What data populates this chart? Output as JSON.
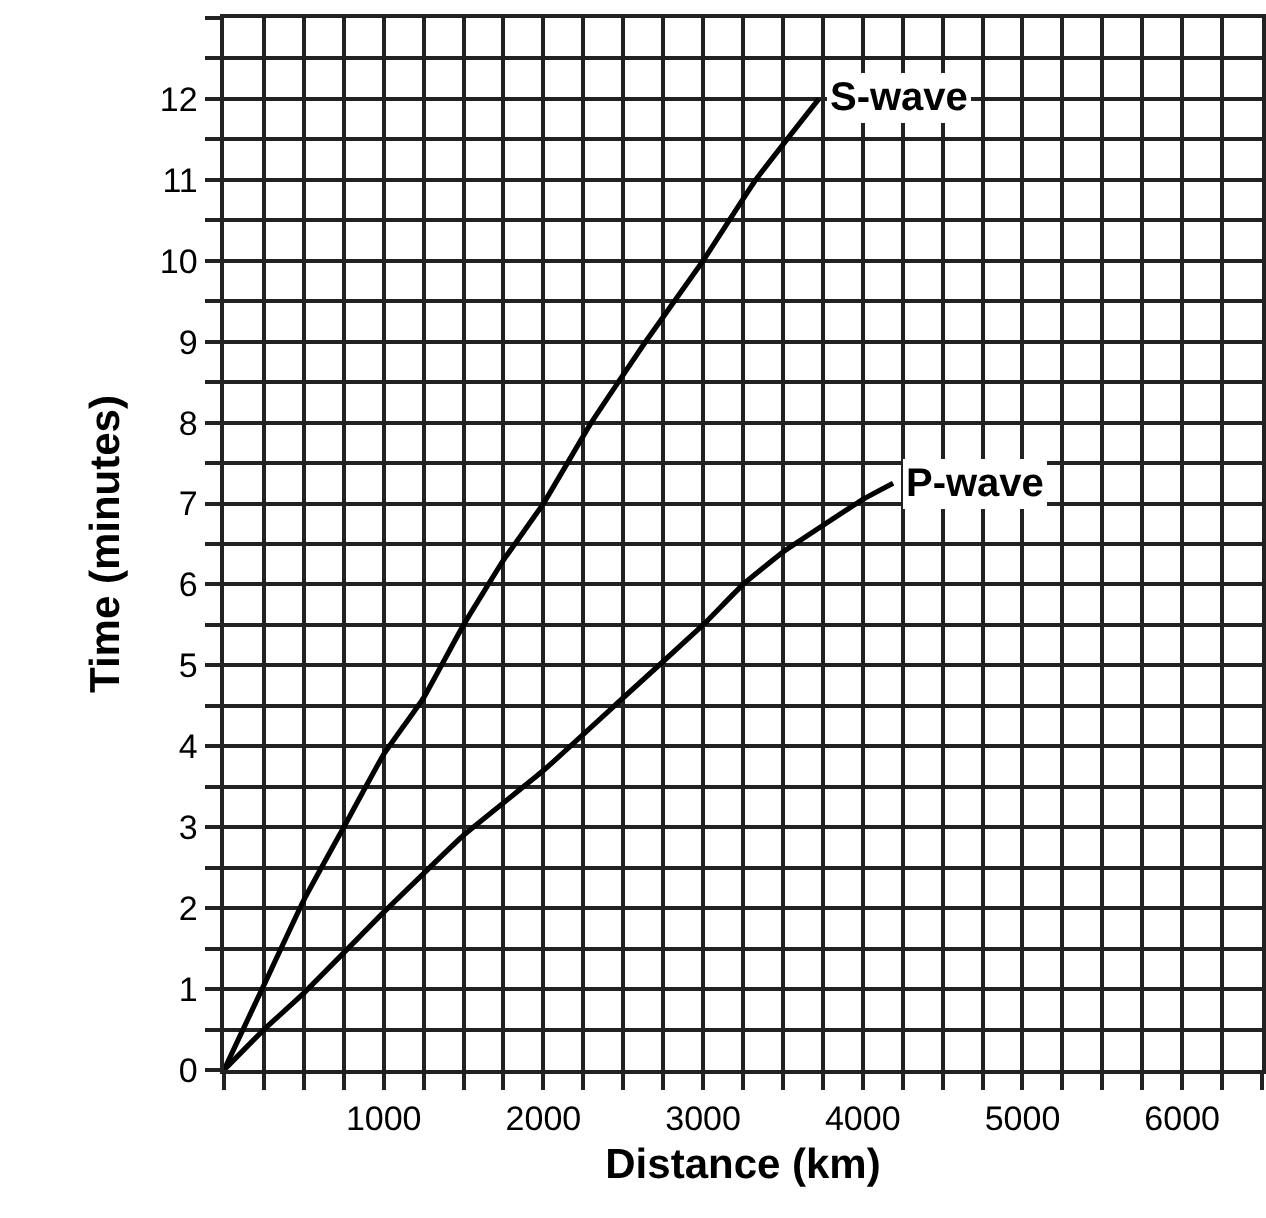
{
  "chart_data": {
    "type": "line",
    "xlabel": "Distance (km)",
    "ylabel": "Time (minutes)",
    "xlim": [
      0,
      6500
    ],
    "ylim": [
      0,
      13
    ],
    "xticks": [
      {
        "value": 0,
        "label": null
      },
      {
        "value": 250,
        "label": null
      },
      {
        "value": 500,
        "label": null
      },
      {
        "value": 750,
        "label": null
      },
      1000,
      {
        "value": 1250,
        "label": null
      },
      {
        "value": 1500,
        "label": null
      },
      {
        "value": 1750,
        "label": null
      },
      2000,
      {
        "value": 2250,
        "label": null
      },
      {
        "value": 2500,
        "label": null
      },
      {
        "value": 2750,
        "label": null
      },
      3000,
      {
        "value": 3250,
        "label": null
      },
      {
        "value": 3500,
        "label": null
      },
      {
        "value": 3750,
        "label": null
      },
      4000,
      {
        "value": 4250,
        "label": null
      },
      {
        "value": 4500,
        "label": null
      },
      {
        "value": 4750,
        "label": null
      },
      5000,
      {
        "value": 5250,
        "label": null
      },
      {
        "value": 5500,
        "label": null
      },
      {
        "value": 5750,
        "label": null
      },
      6000,
      {
        "value": 6250,
        "label": null
      },
      {
        "value": 6500,
        "label": null
      }
    ],
    "yticks": [
      0,
      {
        "value": 0.5,
        "label": null
      },
      1,
      {
        "value": 1.5,
        "label": null
      },
      2,
      {
        "value": 2.5,
        "label": null
      },
      3,
      {
        "value": 3.5,
        "label": null
      },
      4,
      {
        "value": 4.5,
        "label": null
      },
      5,
      {
        "value": 5.5,
        "label": null
      },
      6,
      {
        "value": 6.5,
        "label": null
      },
      7,
      {
        "value": 7.5,
        "label": null
      },
      8,
      {
        "value": 8.5,
        "label": null
      },
      9,
      {
        "value": 9.5,
        "label": null
      },
      10,
      {
        "value": 10.5,
        "label": null
      },
      11,
      {
        "value": 11.5,
        "label": null
      },
      12,
      {
        "value": 12.5,
        "label": null
      },
      {
        "value": 13,
        "label": null
      }
    ],
    "grid": true,
    "legend": false,
    "marker": "none",
    "line_style": "solid",
    "series": [
      {
        "name": "S-wave",
        "color": "#000000",
        "x": [
          0,
          250,
          500,
          750,
          1000,
          1250,
          1500,
          1750,
          2000,
          2300,
          2640,
          3000,
          3330,
          3725
        ],
        "values": [
          0,
          1.05,
          2.1,
          3.0,
          3.9,
          4.6,
          5.5,
          6.3,
          7.0,
          8.0,
          9.0,
          10.0,
          11.0,
          12.0
        ]
      },
      {
        "name": "P-wave",
        "color": "#000000",
        "x": [
          0,
          250,
          500,
          1000,
          1500,
          2000,
          2500,
          3000,
          3250,
          3500,
          4000,
          4190
        ],
        "values": [
          0,
          0.5,
          0.95,
          1.95,
          2.9,
          3.7,
          4.6,
          5.5,
          6.0,
          6.4,
          7.05,
          7.25
        ]
      }
    ]
  }
}
